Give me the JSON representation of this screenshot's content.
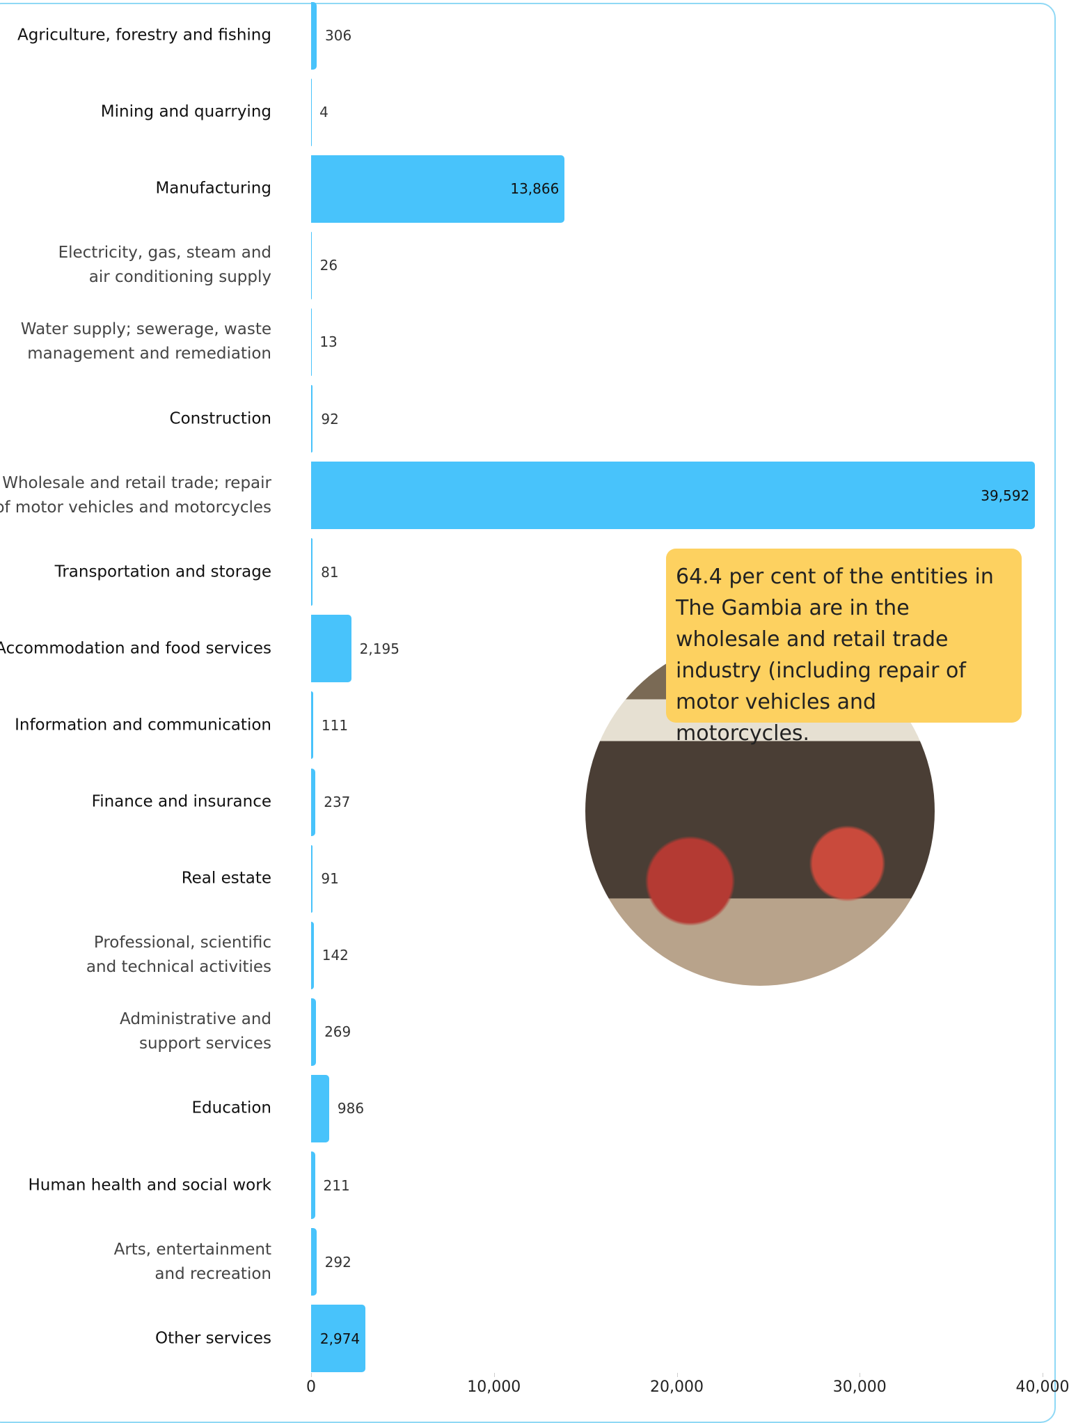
{
  "chart_data": {
    "type": "bar",
    "orientation": "horizontal",
    "categories": [
      "Agriculture, forestry and fishing",
      "Mining and quarrying",
      "Manufacturing",
      "Electricity, gas, steam and air conditioning supply",
      "Water supply; sewerage, waste management and remediation",
      "Construction",
      "Wholesale and retail trade; repair of motor vehicles and motorcycles",
      "Transportation and storage",
      "Accommodation and food services",
      "Information and communication",
      "Finance and insurance",
      "Real estate",
      "Professional, scientific and technical activities",
      "Administrative and support services",
      "Education",
      "Human health and social work",
      "Arts, entertainment and recreation",
      "Other services"
    ],
    "values": [
      306,
      4,
      13866,
      26,
      13,
      92,
      39592,
      81,
      2195,
      111,
      237,
      91,
      142,
      269,
      986,
      211,
      292,
      2974
    ],
    "value_labels": [
      "306",
      "4",
      "13,866",
      "26",
      "13",
      "92",
      "39,592",
      "81",
      "2,195",
      "111",
      "237",
      "91",
      "142",
      "269",
      "986",
      "211",
      "292",
      "2,974"
    ],
    "color": "#48c3fb",
    "xlim": [
      0,
      40000
    ],
    "xticks": [
      0,
      {
        "value": 10000,
        "label": "10,000"
      },
      {
        "value": 20000,
        "label": "20,000"
      },
      {
        "value": 30000,
        "label": "30,000"
      },
      {
        "value": 40000,
        "label": "40,000"
      }
    ],
    "annotation": "64.4 per cent of the entities in The Gambia are in the wholesale and retail trade industry (including repair of motor vehicles and motorcycles."
  }
}
